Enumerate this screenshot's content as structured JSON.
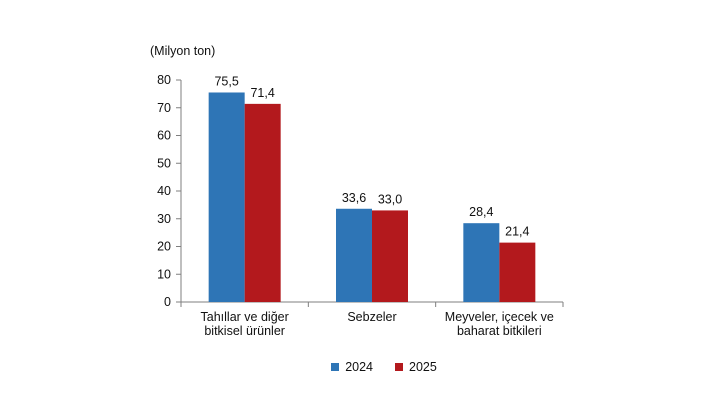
{
  "chart_data": {
    "type": "bar",
    "unit_label": "(Milyon ton)",
    "categories": [
      [
        "Tahıllar ve diğer",
        "bitkisel ürünler"
      ],
      [
        "Sebzeler"
      ],
      [
        "Meyveler, içecek ve",
        "baharat  bitkileri"
      ]
    ],
    "series": [
      {
        "name": "2024",
        "color": "#2e75b6",
        "values": [
          75.5,
          33.6,
          28.4
        ],
        "labels": [
          "75,5",
          "33,6",
          "28,4"
        ]
      },
      {
        "name": "2025",
        "color": "#b3191d",
        "values": [
          71.4,
          33.0,
          21.4
        ],
        "labels": [
          "71,4",
          "33,0",
          "21,4"
        ]
      }
    ],
    "ylim": [
      0,
      80
    ],
    "yticks": [
      0,
      10,
      20,
      30,
      40,
      50,
      60,
      70,
      80
    ],
    "grid": false,
    "legend_position": "bottom"
  },
  "legend": {
    "items": [
      {
        "label": "2024",
        "color": "#2e75b6"
      },
      {
        "label": "2025",
        "color": "#b3191d"
      }
    ]
  }
}
